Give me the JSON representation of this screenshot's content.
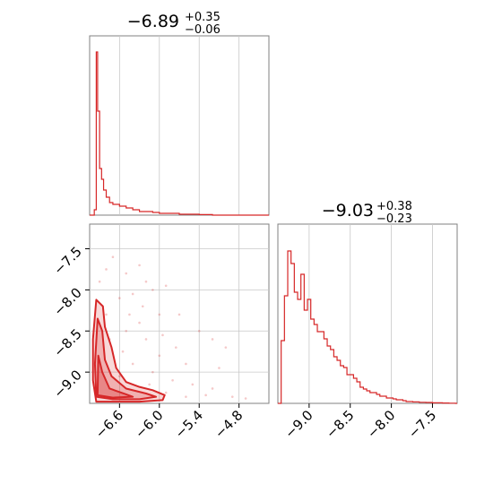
{
  "chart_data": [
    {
      "type": "histogram",
      "panel": "marginal-x1",
      "title": {
        "main": "−6.89",
        "sup": "+0.35",
        "sub": "−0.06"
      },
      "xlim": [
        -7.05,
        -4.35
      ],
      "ylim": [
        0,
        1.0
      ],
      "grid": true,
      "color": "#d62728",
      "xticks": [
        -6.6,
        -6.0,
        -5.4,
        -4.8
      ],
      "bins": {
        "edges": [
          -7.05,
          -6.98,
          -6.95,
          -6.93,
          -6.9,
          -6.87,
          -6.84,
          -6.8,
          -6.75,
          -6.7,
          -6.6,
          -6.5,
          -6.4,
          -6.3,
          -6.2,
          -6.1,
          -6.0,
          -5.9,
          -5.8,
          -5.7,
          -5.6,
          -5.5,
          -5.4,
          -5.2,
          -4.35
        ],
        "values": [
          0,
          0.03,
          0.91,
          0.58,
          0.26,
          0.2,
          0.14,
          0.1,
          0.07,
          0.06,
          0.05,
          0.04,
          0.03,
          0.02,
          0.02,
          0.015,
          0.01,
          0.01,
          0.01,
          0.005,
          0.005,
          0.005,
          0.003,
          0
        ]
      }
    },
    {
      "type": "histogram",
      "panel": "marginal-x2",
      "title": {
        "main": "−9.03",
        "sup": "+0.38",
        "sub": "−0.23"
      },
      "xlim": [
        -9.38,
        -7.2
      ],
      "ylim": [
        0,
        1.0
      ],
      "grid": true,
      "color": "#d62728",
      "xticks": [
        -9.0,
        -8.5,
        -8.0,
        -7.5
      ],
      "bins": {
        "edges": [
          -9.38,
          -9.34,
          -9.3,
          -9.26,
          -9.22,
          -9.18,
          -9.14,
          -9.1,
          -9.06,
          -9.02,
          -8.98,
          -8.94,
          -8.9,
          -8.86,
          -8.82,
          -8.78,
          -8.74,
          -8.7,
          -8.66,
          -8.62,
          -8.58,
          -8.54,
          -8.5,
          -8.46,
          -8.42,
          -8.38,
          -8.34,
          -8.3,
          -8.26,
          -8.22,
          -8.18,
          -8.14,
          -8.1,
          -8.06,
          -8.02,
          -7.98,
          -7.94,
          -7.9,
          -7.86,
          -7.82,
          -7.78,
          -7.74,
          -7.7,
          -7.66,
          -7.62,
          -7.58,
          -7.54,
          -7.5,
          -7.46,
          -7.42,
          -7.38,
          -7.34,
          -7.3,
          -7.26,
          -7.22,
          -7.2
        ],
        "values": [
          0,
          0.35,
          0.6,
          0.85,
          0.78,
          0.62,
          0.58,
          0.72,
          0.52,
          0.58,
          0.47,
          0.44,
          0.4,
          0.4,
          0.36,
          0.32,
          0.3,
          0.26,
          0.24,
          0.21,
          0.2,
          0.16,
          0.16,
          0.14,
          0.12,
          0.09,
          0.08,
          0.07,
          0.06,
          0.06,
          0.05,
          0.04,
          0.04,
          0.03,
          0.03,
          0.025,
          0.02,
          0.02,
          0.015,
          0.01,
          0.01,
          0.008,
          0.008,
          0.006,
          0.006,
          0.005,
          0.005,
          0.003,
          0.003,
          0.003,
          0.002,
          0.002,
          0.001,
          0.001,
          0
        ]
      }
    },
    {
      "type": "scatter-contour",
      "panel": "joint",
      "xlim": [
        -7.05,
        -4.35
      ],
      "ylim": [
        -9.38,
        -7.2
      ],
      "grid": true,
      "color": "#d62728",
      "xticks": [
        -6.6,
        -6.0,
        -5.4,
        -4.8
      ],
      "yticks": [
        -7.5,
        -8.0,
        -8.5,
        -9.0
      ],
      "contours": [
        {
          "level": "outer",
          "points": [
            [
              -6.95,
              -8.12
            ],
            [
              -6.85,
              -8.2
            ],
            [
              -6.82,
              -8.45
            ],
            [
              -6.72,
              -8.7
            ],
            [
              -6.65,
              -8.95
            ],
            [
              -6.5,
              -9.12
            ],
            [
              -6.3,
              -9.18
            ],
            [
              -6.1,
              -9.22
            ],
            [
              -5.92,
              -9.28
            ],
            [
              -5.95,
              -9.34
            ],
            [
              -6.3,
              -9.36
            ],
            [
              -6.7,
              -9.36
            ],
            [
              -6.95,
              -9.36
            ],
            [
              -7.0,
              -9.1
            ],
            [
              -7.0,
              -8.6
            ]
          ]
        },
        {
          "level": "middle",
          "points": [
            [
              -6.93,
              -8.35
            ],
            [
              -6.86,
              -8.5
            ],
            [
              -6.82,
              -8.85
            ],
            [
              -6.72,
              -9.05
            ],
            [
              -6.5,
              -9.2
            ],
            [
              -6.2,
              -9.26
            ],
            [
              -6.05,
              -9.3
            ],
            [
              -6.3,
              -9.33
            ],
            [
              -6.7,
              -9.33
            ],
            [
              -6.95,
              -9.3
            ],
            [
              -6.97,
              -8.9
            ]
          ]
        },
        {
          "level": "inner",
          "points": [
            [
              -6.92,
              -8.8
            ],
            [
              -6.86,
              -9.0
            ],
            [
              -6.75,
              -9.2
            ],
            [
              -6.5,
              -9.27
            ],
            [
              -6.4,
              -9.3
            ],
            [
              -6.7,
              -9.31
            ],
            [
              -6.93,
              -9.28
            ]
          ]
        }
      ],
      "scatter_points": [
        [
          -6.3,
          -7.7
        ],
        [
          -6.5,
          -7.8
        ],
        [
          -6.2,
          -7.9
        ],
        [
          -6.7,
          -7.6
        ],
        [
          -6.1,
          -8.0
        ],
        [
          -5.9,
          -7.95
        ],
        [
          -6.4,
          -8.05
        ],
        [
          -6.6,
          -8.1
        ],
        [
          -6.0,
          -8.3
        ],
        [
          -6.3,
          -8.4
        ],
        [
          -5.7,
          -8.3
        ],
        [
          -5.4,
          -8.5
        ],
        [
          -5.2,
          -8.6
        ],
        [
          -6.5,
          -8.5
        ],
        [
          -6.2,
          -8.6
        ],
        [
          -6.0,
          -8.8
        ],
        [
          -5.6,
          -8.9
        ],
        [
          -5.1,
          -8.95
        ],
        [
          -6.4,
          -8.9
        ],
        [
          -6.1,
          -9.0
        ],
        [
          -5.8,
          -9.1
        ],
        [
          -5.5,
          -9.15
        ],
        [
          -5.2,
          -9.2
        ],
        [
          -6.6,
          -9.05
        ],
        [
          -6.8,
          -8.3
        ],
        [
          -6.9,
          -7.9
        ],
        [
          -6.75,
          -8.6
        ],
        [
          -6.55,
          -8.75
        ],
        [
          -5.9,
          -9.25
        ],
        [
          -5.6,
          -9.3
        ],
        [
          -5.3,
          -9.28
        ],
        [
          -4.9,
          -9.3
        ],
        [
          -5.0,
          -8.7
        ],
        [
          -6.25,
          -8.2
        ],
        [
          -6.45,
          -8.3
        ],
        [
          -5.95,
          -8.55
        ],
        [
          -6.8,
          -7.75
        ],
        [
          -6.15,
          -9.15
        ],
        [
          -5.75,
          -8.7
        ],
        [
          -4.7,
          -9.32
        ]
      ]
    }
  ]
}
